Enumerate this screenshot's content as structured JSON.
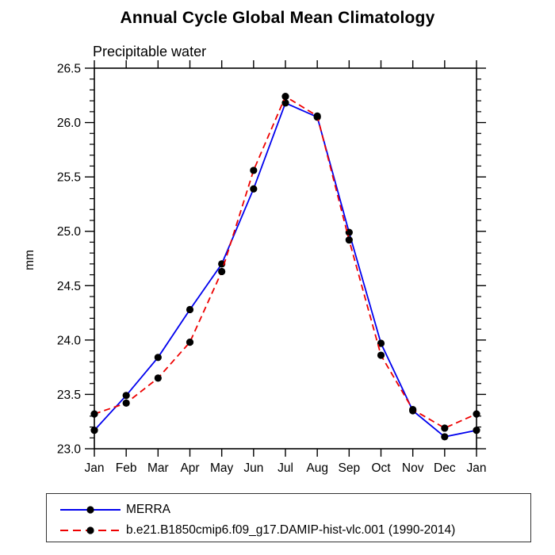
{
  "title": "Annual Cycle Global Mean Climatology",
  "subtitle": "Precipitable water",
  "ylabel": "mm",
  "legend": {
    "items": [
      {
        "label": "MERRA",
        "color": "#0000ee",
        "style": "solid",
        "marker": "black-dot"
      },
      {
        "label": "b.e21.B1850cmip6.f09_g17.DAMIP-hist-vlc.001 (1990-2014)",
        "color": "#ee0000",
        "style": "dashed",
        "marker": "black-dot"
      }
    ]
  },
  "chart_data": {
    "type": "line",
    "title": "Annual Cycle Global Mean Climatology",
    "subtitle": "Precipitable water",
    "xlabel": "",
    "ylabel": "mm",
    "categories": [
      "Jan",
      "Feb",
      "Mar",
      "Apr",
      "May",
      "Jun",
      "Jul",
      "Aug",
      "Sep",
      "Oct",
      "Nov",
      "Dec",
      "Jan"
    ],
    "series": [
      {
        "name": "MERRA",
        "color": "#0000ee",
        "style": "solid",
        "marker": "black-dot",
        "values": [
          23.17,
          23.49,
          23.84,
          24.28,
          24.7,
          25.39,
          26.18,
          26.05,
          24.99,
          23.97,
          23.35,
          23.11,
          23.17
        ]
      },
      {
        "name": "b.e21.B1850cmip6.f09_g17.DAMIP-hist-vlc.001 (1990-2014)",
        "color": "#ee0000",
        "style": "dashed",
        "marker": "black-dot",
        "values": [
          23.32,
          23.42,
          23.65,
          23.98,
          24.63,
          25.56,
          26.24,
          26.06,
          24.92,
          23.86,
          23.36,
          23.19,
          23.32
        ]
      }
    ],
    "ylim": [
      23.0,
      26.5
    ],
    "ytick_step": 0.5,
    "yminor_step": 0.1,
    "ytick_labels": [
      "23.0",
      "23.5",
      "24.0",
      "24.5",
      "25.0",
      "25.5",
      "26.0",
      "26.5"
    ],
    "grid": false,
    "marker_color": "#000000",
    "legend_position": "bottom-left"
  }
}
